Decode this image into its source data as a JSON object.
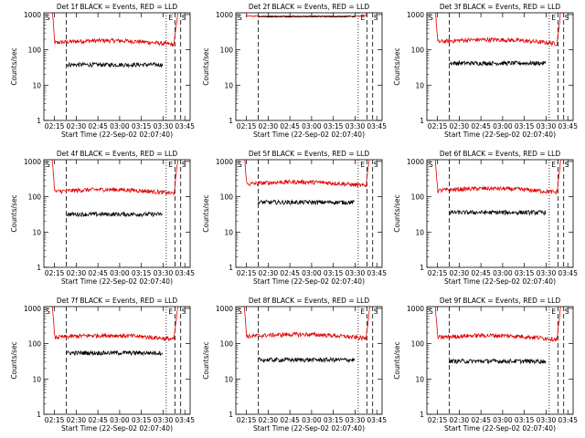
{
  "figure": {
    "background": "#ffffff",
    "red": "#e00000",
    "black": "#000000"
  },
  "chart_data": [
    {
      "type": "line",
      "title": "Det 1f BLACK = Events, RED = LLD",
      "xlabel": "Start Time (22-Sep-02 02:07:40)",
      "ylabel": "Counts/sec",
      "xticks": [
        "02:15",
        "02:30",
        "02:45",
        "03:00",
        "03:15",
        "03:30",
        "03:45"
      ],
      "yticks": [
        "1",
        "10",
        "100",
        "1000"
      ],
      "ylim": [
        1,
        1000
      ],
      "yscale": "log",
      "markers": [
        "S",
        "E",
        "S"
      ],
      "series": [
        {
          "name": "RED = LLD",
          "color": "#e00000",
          "level": 160,
          "hump": 1.2
        },
        {
          "name": "BLACK = Events",
          "color": "#000000",
          "level": 38,
          "hump": 1.0
        }
      ]
    },
    {
      "type": "line",
      "title": "Det 2f BLACK = Events, RED = LLD",
      "xlabel": "Start Time (22-Sep-02 02:07:40)",
      "ylabel": "Counts/sec",
      "xticks": [
        "02:15",
        "02:30",
        "02:45",
        "03:00",
        "03:15",
        "03:30",
        "03:45"
      ],
      "yticks": [
        "1",
        "10",
        "100",
        "1000"
      ],
      "ylim": [
        1,
        1000
      ],
      "yscale": "log",
      "markers": [
        "S",
        "E",
        "S"
      ],
      "series": [
        {
          "name": "RED = LLD",
          "color": "#e00000",
          "level": 900,
          "hump": 1.0
        },
        {
          "name": "BLACK = Events",
          "color": "#000000",
          "level": 870,
          "hump": 1.0
        }
      ]
    },
    {
      "type": "line",
      "title": "Det 3f BLACK = Events, RED = LLD",
      "xlabel": "Start Time (22-Sep-02 02:07:40)",
      "ylabel": "Counts/sec",
      "xticks": [
        "02:15",
        "02:30",
        "02:45",
        "03:00",
        "03:15",
        "03:30",
        "03:45"
      ],
      "yticks": [
        "1",
        "10",
        "100",
        "1000"
      ],
      "ylim": [
        1,
        1000
      ],
      "yscale": "log",
      "markers": [
        "S",
        "E",
        "S"
      ],
      "series": [
        {
          "name": "RED = LLD",
          "color": "#e00000",
          "level": 170,
          "hump": 1.2
        },
        {
          "name": "BLACK = Events",
          "color": "#000000",
          "level": 42,
          "hump": 1.0
        }
      ]
    },
    {
      "type": "line",
      "title": "Det 4f BLACK = Events, RED = LLD",
      "xlabel": "Start Time (22-Sep-02 02:07:40)",
      "ylabel": "Counts/sec",
      "xticks": [
        "02:15",
        "02:30",
        "02:45",
        "03:00",
        "03:15",
        "03:30",
        "03:45"
      ],
      "yticks": [
        "1",
        "10",
        "100",
        "1000"
      ],
      "ylim": [
        1,
        1000
      ],
      "yscale": "log",
      "markers": [
        "S",
        "E",
        "S"
      ],
      "series": [
        {
          "name": "RED = LLD",
          "color": "#e00000",
          "level": 140,
          "hump": 1.2
        },
        {
          "name": "BLACK = Events",
          "color": "#000000",
          "level": 32,
          "hump": 1.0
        }
      ]
    },
    {
      "type": "line",
      "title": "Det 5f BLACK = Events, RED = LLD",
      "xlabel": "Start Time (22-Sep-02 02:07:40)",
      "ylabel": "Counts/sec",
      "xticks": [
        "02:15",
        "02:30",
        "02:45",
        "03:00",
        "03:15",
        "03:30",
        "03:45"
      ],
      "yticks": [
        "1",
        "10",
        "100",
        "1000"
      ],
      "ylim": [
        1,
        1000
      ],
      "yscale": "log",
      "markers": [
        "S",
        "E",
        "S"
      ],
      "series": [
        {
          "name": "RED = LLD",
          "color": "#e00000",
          "level": 230,
          "hump": 1.2
        },
        {
          "name": "BLACK = Events",
          "color": "#000000",
          "level": 70,
          "hump": 1.0
        }
      ]
    },
    {
      "type": "line",
      "title": "Det 6f BLACK = Events, RED = LLD",
      "xlabel": "Start Time (22-Sep-02 02:07:40)",
      "ylabel": "Counts/sec",
      "xticks": [
        "02:15",
        "02:30",
        "02:45",
        "03:00",
        "03:15",
        "03:30",
        "03:45"
      ],
      "yticks": [
        "1",
        "10",
        "100",
        "1000"
      ],
      "ylim": [
        1,
        1000
      ],
      "yscale": "log",
      "markers": [
        "S",
        "E",
        "S"
      ],
      "series": [
        {
          "name": "RED = LLD",
          "color": "#e00000",
          "level": 150,
          "hump": 1.2
        },
        {
          "name": "BLACK = Events",
          "color": "#000000",
          "level": 36,
          "hump": 1.0
        }
      ]
    },
    {
      "type": "line",
      "title": "Det 7f BLACK = Events, RED = LLD",
      "xlabel": "Start Time (22-Sep-02 02:07:40)",
      "ylabel": "Counts/sec",
      "xticks": [
        "02:15",
        "02:30",
        "02:45",
        "03:00",
        "03:15",
        "03:30",
        "03:45"
      ],
      "yticks": [
        "1",
        "10",
        "100",
        "1000"
      ],
      "ylim": [
        1,
        1000
      ],
      "yscale": "log",
      "markers": [
        "S",
        "E",
        "S"
      ],
      "series": [
        {
          "name": "RED = LLD",
          "color": "#e00000",
          "level": 150,
          "hump": 1.2
        },
        {
          "name": "BLACK = Events",
          "color": "#000000",
          "level": 55,
          "hump": 1.0
        }
      ]
    },
    {
      "type": "line",
      "title": "Det 8f BLACK = Events, RED = LLD",
      "xlabel": "Start Time (22-Sep-02 02:07:40)",
      "ylabel": "Counts/sec",
      "xticks": [
        "02:15",
        "02:30",
        "02:45",
        "03:00",
        "03:15",
        "03:30",
        "03:45"
      ],
      "yticks": [
        "1",
        "10",
        "100",
        "1000"
      ],
      "ylim": [
        1,
        1000
      ],
      "yscale": "log",
      "markers": [
        "S",
        "E",
        "S"
      ],
      "series": [
        {
          "name": "RED = LLD",
          "color": "#e00000",
          "level": 160,
          "hump": 1.2
        },
        {
          "name": "BLACK = Events",
          "color": "#000000",
          "level": 35,
          "hump": 1.0
        }
      ]
    },
    {
      "type": "line",
      "title": "Det 9f BLACK = Events, RED = LLD",
      "xlabel": "Start Time (22-Sep-02 02:07:40)",
      "ylabel": "Counts/sec",
      "xticks": [
        "02:15",
        "02:30",
        "02:45",
        "03:00",
        "03:15",
        "03:30",
        "03:45"
      ],
      "yticks": [
        "1",
        "10",
        "100",
        "1000"
      ],
      "ylim": [
        1,
        1000
      ],
      "yscale": "log",
      "markers": [
        "S",
        "E",
        "S"
      ],
      "series": [
        {
          "name": "RED = LLD",
          "color": "#e00000",
          "level": 150,
          "hump": 1.2
        },
        {
          "name": "BLACK = Events",
          "color": "#000000",
          "level": 32,
          "hump": 1.0
        }
      ]
    }
  ]
}
